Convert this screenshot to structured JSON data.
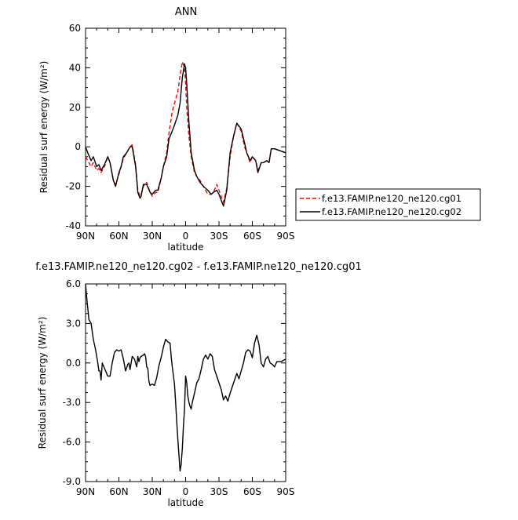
{
  "chart_data": [
    {
      "type": "line",
      "title": "ANN",
      "xlabel": "latitude",
      "ylabel": "Residual surf energy (W/m²)",
      "xlim": [
        90,
        -90
      ],
      "ylim": [
        -40,
        60
      ],
      "xticks": [
        90,
        60,
        30,
        0,
        -30,
        -60,
        -90
      ],
      "xtick_labels": [
        "90N",
        "60N",
        "30N",
        "0",
        "30S",
        "60S",
        "90S"
      ],
      "yticks": [
        -40,
        -20,
        0,
        20,
        40,
        60
      ],
      "ytick_labels": [
        "-40",
        "-20",
        "0",
        "20",
        "40",
        "60"
      ],
      "grid": false,
      "legend": "right",
      "series": [
        {
          "name": "f.e13.FAMIP.ne120_ne120.cg01",
          "color": "#ff0000",
          "dash": "dashed",
          "x": [
            90,
            88,
            85,
            83,
            80,
            78,
            76,
            73,
            70,
            68,
            65,
            63,
            60,
            58,
            56,
            53,
            50,
            48,
            45,
            43,
            41,
            40,
            38,
            35,
            32,
            30,
            27,
            25,
            22,
            20,
            17,
            15,
            12,
            10,
            7,
            5,
            3,
            1,
            0,
            -1,
            -3,
            -5,
            -8,
            -10,
            -13,
            -16,
            -20,
            -23,
            -25,
            -28,
            -30,
            -32,
            -34,
            -37,
            -40,
            -43,
            -46,
            -50,
            -53,
            -55,
            -58,
            -60,
            -63,
            -65,
            -68,
            -70,
            -73,
            -75,
            -77,
            -80,
            -85,
            -90
          ],
          "y": [
            -5,
            -7,
            -10,
            -8,
            -12,
            -11,
            -13,
            -10,
            -5,
            -8,
            -17,
            -19,
            -14,
            -10,
            -6,
            -3,
            0,
            1,
            -9,
            -22,
            -25,
            -24,
            -20,
            -18,
            -23,
            -25,
            -23,
            -23,
            -16,
            -10,
            -3,
            7,
            18,
            22,
            28,
            36,
            43,
            40,
            32,
            20,
            5,
            -5,
            -13,
            -15,
            -17,
            -20,
            -24,
            -24,
            -23,
            -19,
            -22,
            -25,
            -28,
            -21,
            -5,
            5,
            12,
            8,
            0,
            -3,
            -8,
            -5,
            -7,
            -12,
            -8,
            -8,
            -7,
            -8,
            -1,
            -1,
            -2,
            -3
          ]
        },
        {
          "name": "f.e13.FAMIP.ne120_ne120.cg02",
          "color": "#000000",
          "dash": "solid",
          "x": [
            90,
            88,
            85,
            83,
            80,
            78,
            76,
            73,
            70,
            68,
            65,
            63,
            60,
            58,
            56,
            53,
            50,
            48,
            45,
            43,
            41,
            40,
            38,
            35,
            32,
            30,
            27,
            25,
            22,
            20,
            17,
            15,
            12,
            10,
            7,
            5,
            3,
            1,
            0,
            -1,
            -3,
            -5,
            -8,
            -10,
            -13,
            -16,
            -20,
            -23,
            -25,
            -28,
            -30,
            -32,
            -34,
            -37,
            -40,
            -43,
            -46,
            -50,
            -53,
            -55,
            -58,
            -60,
            -63,
            -65,
            -68,
            -70,
            -73,
            -75,
            -77,
            -80,
            -85,
            -90
          ],
          "y": [
            0,
            -3,
            -7,
            -5,
            -10,
            -9,
            -12,
            -9,
            -5,
            -8,
            -17,
            -20,
            -13,
            -10,
            -5,
            -3,
            0,
            0,
            -10,
            -23,
            -26,
            -25,
            -19,
            -19,
            -23,
            -24,
            -22,
            -22,
            -16,
            -10,
            -5,
            4,
            8,
            11,
            16,
            22,
            35,
            42,
            40,
            32,
            12,
            -3,
            -12,
            -15,
            -18,
            -20,
            -22,
            -24,
            -23,
            -22,
            -24,
            -27,
            -30,
            -22,
            -3,
            5,
            12,
            9,
            2,
            -3,
            -7,
            -5,
            -7,
            -13,
            -8,
            -8,
            -7,
            -8,
            -1,
            -1,
            -2,
            -3
          ]
        }
      ]
    },
    {
      "type": "line",
      "title": "f.e13.FAMIP.ne120_ne120.cg02 - f.e13.FAMIP.ne120_ne120.cg01",
      "xlabel": "latitude",
      "ylabel": "Residual surf energy (W/m²)",
      "xlim": [
        90,
        -90
      ],
      "ylim": [
        -9,
        6
      ],
      "xticks": [
        90,
        60,
        30,
        0,
        -30,
        -60,
        -90
      ],
      "xtick_labels": [
        "90N",
        "60N",
        "30N",
        "0",
        "30S",
        "60S",
        "90S"
      ],
      "yticks": [
        -9,
        -6,
        -3,
        0,
        3,
        6
      ],
      "ytick_labels": [
        "-9.0",
        "-6.0",
        "-3.0",
        "0.0",
        "3.0",
        "6.0"
      ],
      "grid": false,
      "series": [
        {
          "color": "#000000",
          "dash": "solid",
          "x": [
            90,
            89,
            87,
            85,
            83,
            81,
            79,
            78,
            77,
            76,
            75,
            73,
            71,
            70,
            68,
            66,
            64,
            62,
            60,
            58,
            56,
            54,
            52,
            51,
            50,
            48,
            46,
            44,
            43,
            42,
            41,
            40,
            38,
            37,
            36,
            35,
            34,
            33,
            32,
            30,
            28,
            26,
            24,
            22,
            20,
            18,
            16,
            14,
            13,
            12,
            10,
            9,
            8,
            7,
            6,
            5,
            4,
            3,
            2,
            1,
            0,
            -1,
            -2,
            -3,
            -4,
            -5,
            -6,
            -8,
            -10,
            -12,
            -14,
            -16,
            -18,
            -20,
            -22,
            -24,
            -26,
            -28,
            -30,
            -32,
            -34,
            -36,
            -38,
            -40,
            -42,
            -44,
            -46,
            -48,
            -50,
            -52,
            -54,
            -56,
            -58,
            -60,
            -62,
            -64,
            -66,
            -68,
            -70,
            -72,
            -74,
            -76,
            -78,
            -80,
            -82,
            -84,
            -86,
            -88,
            -90
          ],
          "y": [
            6.0,
            5.0,
            3.3,
            3.0,
            1.8,
            1.0,
            0.0,
            -0.6,
            -0.6,
            -1.3,
            0.0,
            -0.4,
            -0.8,
            -1.0,
            -1.0,
            0.0,
            0.8,
            1.0,
            0.9,
            1.0,
            0.3,
            -0.6,
            -0.1,
            0.0,
            -0.5,
            0.5,
            0.3,
            -0.3,
            0.5,
            0.1,
            0.4,
            0.5,
            0.6,
            0.7,
            0.5,
            -0.3,
            -0.4,
            -1.4,
            -1.7,
            -1.6,
            -1.7,
            -1.1,
            -0.2,
            0.4,
            1.2,
            1.8,
            1.6,
            1.5,
            0.5,
            -0.3,
            -1.6,
            -3.0,
            -4.5,
            -5.8,
            -7.0,
            -8.2,
            -7.7,
            -6.5,
            -4.8,
            -3.5,
            -1.0,
            -1.5,
            -2.5,
            -3.0,
            -3.3,
            -3.5,
            -3.0,
            -2.3,
            -1.5,
            -1.2,
            -0.5,
            0.3,
            0.6,
            0.3,
            0.7,
            0.5,
            -0.5,
            -1.0,
            -1.5,
            -2.0,
            -2.8,
            -2.5,
            -2.9,
            -2.3,
            -1.8,
            -1.3,
            -0.8,
            -1.2,
            -0.6,
            0.0,
            0.8,
            1.0,
            0.9,
            0.4,
            1.5,
            2.1,
            1.4,
            0.0,
            -0.3,
            0.3,
            0.5,
            0.0,
            -0.1,
            -0.3,
            0.1,
            0.1,
            0.1,
            0.2,
            0.3
          ]
        }
      ]
    }
  ]
}
